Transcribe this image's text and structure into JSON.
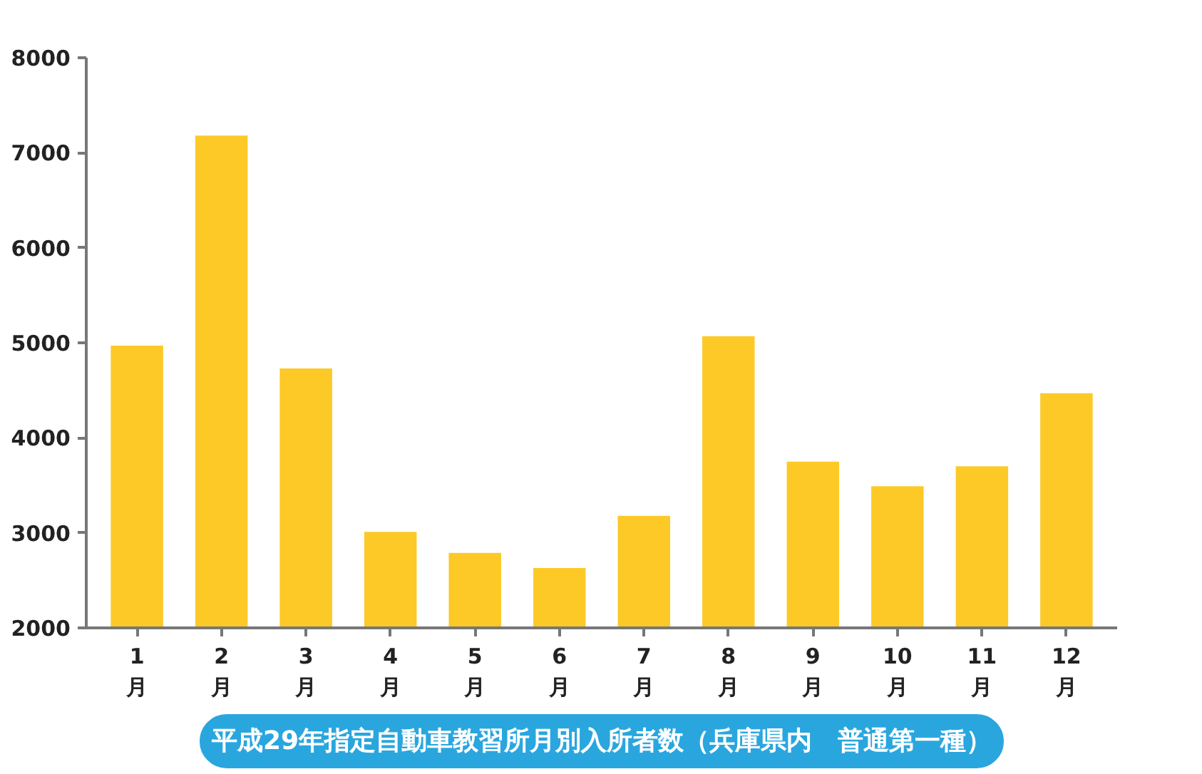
{
  "chart_data": {
    "type": "bar",
    "title": "平成29年指定自動車教習所月別入所者数（兵庫県内　普通第一種）",
    "categories": [
      "1\n月",
      "2\n月",
      "3\n月",
      "4\n月",
      "5\n月",
      "6\n月",
      "7\n月",
      "8\n月",
      "9\n月",
      "10\n月",
      "11\n月",
      "12\n月"
    ],
    "values": [
      4970,
      7180,
      4730,
      3010,
      2790,
      2630,
      3180,
      5070,
      3750,
      3490,
      3700,
      4470
    ],
    "color": "#fcc927",
    "ylim": [
      2000,
      8000
    ],
    "yticks": [
      2000,
      3000,
      4000,
      5000,
      6000,
      7000,
      8000
    ]
  }
}
